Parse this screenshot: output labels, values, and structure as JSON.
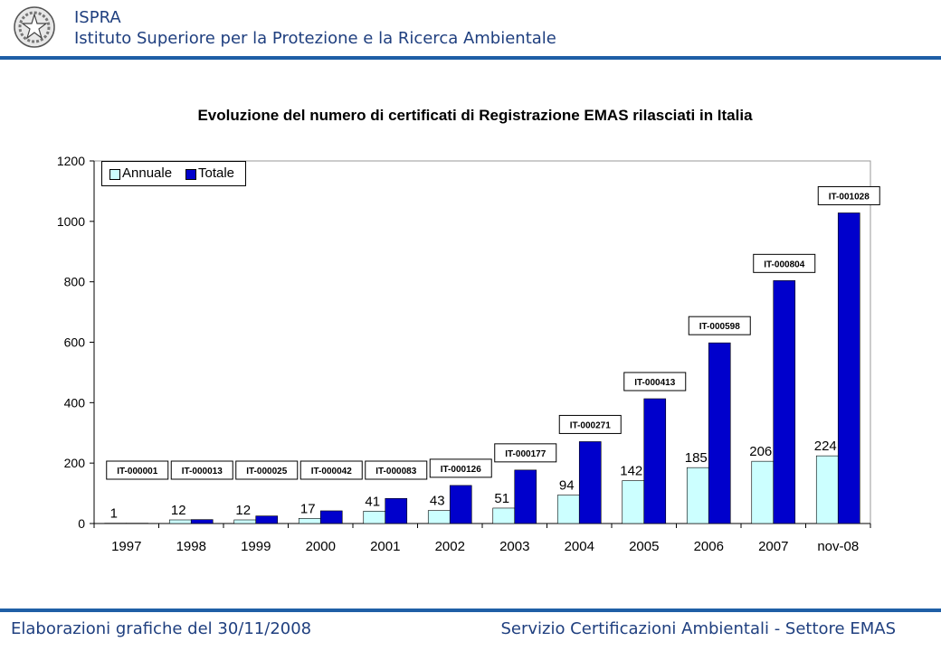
{
  "header": {
    "org_short": "ISPRA",
    "org_long": "Istituto Superiore per la Protezione e la Ricerca Ambientale",
    "logo_icon": "republic-emblem-icon"
  },
  "footer": {
    "left": "Elaborazioni grafiche del 30/11/2008",
    "right": "Servizio Certificazioni Ambientali - Settore EMAS"
  },
  "colors": {
    "annuale": "#ccffff",
    "totale": "#0000cc",
    "rule": "#1f5fa6",
    "text": "#1f3f7f"
  },
  "chart_data": {
    "type": "bar",
    "title": "Evoluzione del numero di certificati di Registrazione EMAS rilasciati in Italia",
    "categories": [
      "1997",
      "1998",
      "1999",
      "2000",
      "2001",
      "2002",
      "2003",
      "2004",
      "2005",
      "2006",
      "2007",
      "nov-08"
    ],
    "series": [
      {
        "name": "Annuale",
        "values": [
          1,
          12,
          12,
          17,
          41,
          43,
          51,
          94,
          142,
          185,
          206,
          224
        ]
      },
      {
        "name": "Totale",
        "values": [
          1,
          13,
          25,
          42,
          83,
          126,
          177,
          271,
          413,
          598,
          804,
          1028
        ]
      }
    ],
    "annuale_labels": [
      "1",
      "12",
      "12",
      "17",
      "41",
      "43",
      "51",
      "94",
      "142",
      "185",
      "206",
      "224"
    ],
    "totale_labels": [
      "IT-000001",
      "IT-000013",
      "IT-000025",
      "IT-000042",
      "IT-000083",
      "IT-000126",
      "IT-000177",
      "IT-000271",
      "IT-000413",
      "IT-000598",
      "IT-000804",
      "IT-001028"
    ],
    "ylim": [
      0,
      1200
    ],
    "yticks": [
      "0",
      "200",
      "400",
      "600",
      "800",
      "1000",
      "1200"
    ],
    "xlabel": "",
    "ylabel": "",
    "legend_position": "top-left"
  }
}
